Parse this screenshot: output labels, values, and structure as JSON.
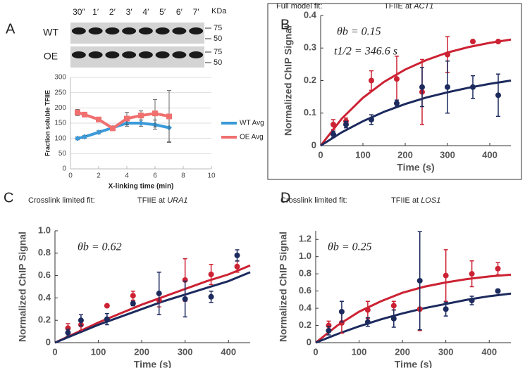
{
  "blot": {
    "lanes": [
      "30″",
      "1′",
      "2′",
      "3′",
      "4′",
      "5′",
      "6′",
      "7′"
    ],
    "unit": "KDa",
    "rows": [
      {
        "label": "WT",
        "markers": [
          "75",
          "50"
        ]
      },
      {
        "label": "OE",
        "markers": [
          "75",
          "50"
        ]
      }
    ]
  },
  "chart_data": [
    {
      "type": "line",
      "panel": "A",
      "xlabel": "X-linking time (min)",
      "ylabel": "Fraction soluble TFIIE",
      "x": [
        0.5,
        1,
        2,
        3,
        4,
        5,
        6,
        7
      ],
      "series": [
        {
          "name": "WT Avg",
          "color": "#3a9ad9",
          "values": [
            100,
            105,
            120,
            135,
            150,
            150,
            145,
            135
          ],
          "errors": [
            5,
            5,
            5,
            5,
            10,
            10,
            15,
            45
          ]
        },
        {
          "name": "OE Avg",
          "color": "#f07070",
          "values": [
            185,
            178,
            162,
            133,
            165,
            175,
            182,
            172
          ],
          "errors": [
            10,
            5,
            5,
            5,
            20,
            15,
            45,
            85
          ]
        }
      ],
      "xlim": [
        0,
        10
      ],
      "xticks": [
        0,
        2,
        4,
        6,
        8,
        10
      ],
      "ylim": [
        0,
        300
      ],
      "yticks": [
        0,
        50,
        100,
        150,
        200,
        250,
        300
      ],
      "grid": true,
      "legend": "right"
    },
    {
      "type": "scatter",
      "panel": "B",
      "header": "Full model fit:",
      "title": "TFIIE at",
      "gene": "ACT1",
      "annotations": [
        "θb = 0.15",
        "t1/2 = 346.6 s"
      ],
      "xlabel": "Time (s)",
      "ylabel": "Normalized ChIP Signal",
      "series": [
        {
          "color": "#cc2233",
          "x": [
            30,
            60,
            120,
            180,
            240,
            300,
            360,
            420
          ],
          "values": [
            0.065,
            0.075,
            0.2,
            0.205,
            0.165,
            0.28,
            0.32,
            0.32
          ],
          "errors": [
            0.015,
            0.01,
            0.03,
            0.07,
            0.1,
            0.055,
            0,
            0
          ]
        },
        {
          "color": "#1c2a5e",
          "x": [
            30,
            60,
            120,
            180,
            240,
            300,
            360,
            420
          ],
          "values": [
            0.035,
            0.065,
            0.08,
            0.13,
            0.18,
            0.18,
            0.18,
            0.155
          ],
          "errors": [
            0.01,
            0.01,
            0.015,
            0.01,
            0.06,
            0.08,
            0.035,
            0.065
          ]
        }
      ],
      "fits": [
        {
          "color": "#cc2233",
          "x": [
            0,
            50,
            100,
            150,
            200,
            250,
            300,
            350,
            400,
            450
          ],
          "values": [
            0,
            0.083,
            0.147,
            0.196,
            0.234,
            0.263,
            0.286,
            0.303,
            0.316,
            0.326
          ]
        },
        {
          "color": "#1c2a5e",
          "x": [
            0,
            50,
            100,
            150,
            200,
            250,
            300,
            350,
            400,
            450
          ],
          "values": [
            0,
            0.041,
            0.075,
            0.104,
            0.128,
            0.148,
            0.164,
            0.178,
            0.19,
            0.2
          ]
        }
      ],
      "xlim": [
        0,
        450
      ],
      "xticks": [
        0,
        100,
        200,
        300,
        400
      ],
      "ylim": [
        0,
        0.4
      ],
      "yticks": [
        0,
        0.1,
        0.2,
        0.3,
        0.4
      ]
    },
    {
      "type": "scatter",
      "panel": "C",
      "header": "Crosslink limited fit:",
      "title": "TFIIE at",
      "gene": "URA1",
      "annotations": [
        "θb = 0.62"
      ],
      "xlabel": "Time (s)",
      "ylabel": "Normalized ChIP Signal",
      "series": [
        {
          "color": "#cc2233",
          "x": [
            30,
            60,
            120,
            180,
            240,
            300,
            360,
            420
          ],
          "values": [
            0.13,
            0.16,
            0.33,
            0.42,
            0.38,
            0.56,
            0.61,
            0.68
          ],
          "errors": [
            0.04,
            0.05,
            0.01,
            0.04,
            0.06,
            0.19,
            0.09,
            0.05
          ]
        },
        {
          "color": "#1c2a5e",
          "x": [
            30,
            60,
            120,
            180,
            240,
            300,
            360,
            420
          ],
          "values": [
            0.09,
            0.2,
            0.21,
            0.35,
            0.44,
            0.39,
            0.41,
            0.78
          ],
          "errors": [
            0.03,
            0.05,
            0.05,
            0.02,
            0.19,
            0.16,
            0.05,
            0.05
          ]
        }
      ],
      "fits": [
        {
          "color": "#cc2233",
          "x": [
            0,
            50,
            100,
            150,
            200,
            250,
            300,
            350,
            400,
            450
          ],
          "values": [
            0,
            0.09,
            0.18,
            0.26,
            0.34,
            0.41,
            0.48,
            0.55,
            0.61,
            0.69
          ]
        },
        {
          "color": "#1c2a5e",
          "x": [
            0,
            50,
            100,
            150,
            200,
            250,
            300,
            350,
            400,
            450
          ],
          "values": [
            0,
            0.08,
            0.16,
            0.23,
            0.3,
            0.37,
            0.43,
            0.49,
            0.55,
            0.63
          ]
        }
      ],
      "xlim": [
        0,
        450
      ],
      "xticks": [
        0,
        100,
        200,
        300,
        400
      ],
      "ylim": [
        0,
        1.0
      ],
      "yticks": [
        0,
        0.2,
        0.4,
        0.6,
        0.8,
        {
          "value": 1.0,
          "label": "1.0"
        }
      ]
    },
    {
      "type": "scatter",
      "panel": "D",
      "header": "Crosslink limited fit:",
      "title": "TFIIE at",
      "gene": "LOS1",
      "annotations": [
        "θb = 0.25"
      ],
      "xlabel": "Time (s)",
      "ylabel": "Normalized ChIP Signal",
      "series": [
        {
          "color": "#cc2233",
          "x": [
            30,
            60,
            120,
            180,
            240,
            300,
            360,
            420
          ],
          "values": [
            0.2,
            0.23,
            0.38,
            0.43,
            0.39,
            0.78,
            0.8,
            0.86
          ],
          "errors": [
            0.05,
            0.12,
            0.1,
            0.05,
            0.25,
            0.3,
            0.15,
            0.07
          ]
        },
        {
          "color": "#1c2a5e",
          "x": [
            30,
            60,
            120,
            180,
            240,
            300,
            360,
            420
          ],
          "values": [
            0.14,
            0.36,
            0.24,
            0.28,
            0.72,
            0.39,
            0.49,
            0.6
          ],
          "errors": [
            0.05,
            0.12,
            0.05,
            0.1,
            0.57,
            0.08,
            0.05,
            0.02
          ]
        }
      ],
      "fits": [
        {
          "color": "#cc2233",
          "x": [
            0,
            50,
            100,
            150,
            200,
            250,
            300,
            350,
            400,
            450
          ],
          "values": [
            0,
            0.2,
            0.36,
            0.48,
            0.58,
            0.65,
            0.7,
            0.74,
            0.77,
            0.79
          ]
        },
        {
          "color": "#1c2a5e",
          "x": [
            0,
            50,
            100,
            150,
            200,
            250,
            300,
            350,
            400,
            450
          ],
          "values": [
            0,
            0.1,
            0.19,
            0.27,
            0.34,
            0.4,
            0.45,
            0.5,
            0.54,
            0.57
          ]
        }
      ],
      "xlim": [
        0,
        450
      ],
      "xticks": [
        0,
        100,
        200,
        300,
        400
      ],
      "ylim": [
        0,
        1.3
      ],
      "yticks": [
        0,
        0.2,
        0.4,
        0.6,
        0.8,
        {
          "value": 1.0,
          "label": "1.0"
        },
        1.2
      ]
    }
  ]
}
